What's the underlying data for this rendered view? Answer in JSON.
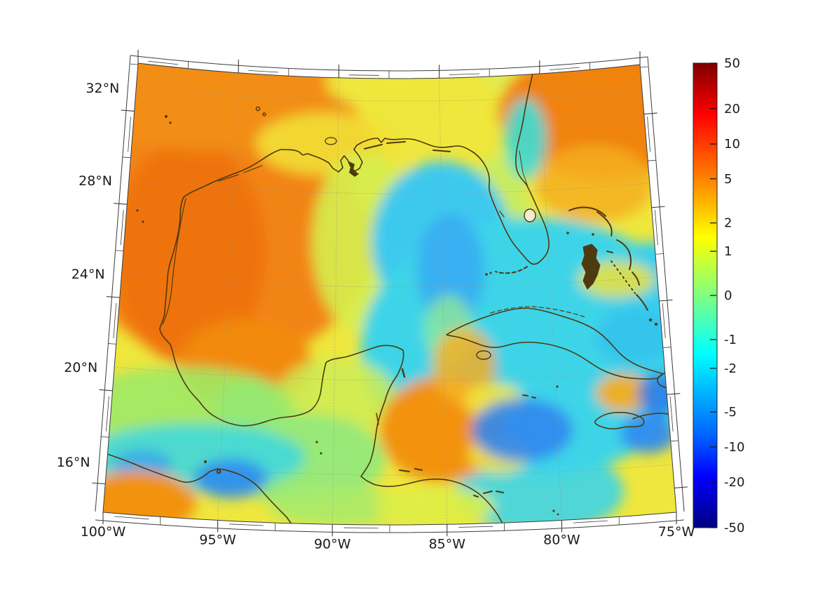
{
  "figure": {
    "background": "#ffffff",
    "description": "Filled-contour anomaly map of the Gulf of Mexico and northwest Caribbean with symlog jet colorbar"
  },
  "map": {
    "lat_tick_labels": [
      "32°N",
      "28°N",
      "24°N",
      "20°N",
      "16°N"
    ],
    "lon_tick_labels": [
      "100°W",
      "95°W",
      "90°W",
      "85°W",
      "80°W",
      "75°W"
    ],
    "coastline_color": "#4e3a10",
    "gridline_color": "#999388",
    "frame_color": "#3c3c3c"
  },
  "colorbar": {
    "tick_labels": [
      "50",
      "20",
      "10",
      "5",
      "2",
      "1",
      "0",
      "-1",
      "-2",
      "-5",
      "-10",
      "-20",
      "-50"
    ],
    "tick_pos": [
      0.0,
      0.098,
      0.174,
      0.249,
      0.344,
      0.405,
      0.5,
      0.595,
      0.657,
      0.751,
      0.826,
      0.902,
      1.0
    ],
    "colormap": "jet",
    "scale": "symlog"
  },
  "chart_data": {
    "type": "heatmap",
    "subtype": "geographic filled-contour field over map (pcolormesh-style), conic projection with curved parallels",
    "title": "",
    "xlabel": "",
    "ylabel": "",
    "extent": {
      "lon_west": -100,
      "lon_east": -75,
      "lat_south": 14,
      "lat_north": 33
    },
    "x_axis": {
      "ticks": [
        "100°W",
        "95°W",
        "90°W",
        "85°W",
        "80°W",
        "75°W"
      ],
      "minor_tick_step_deg": 2.5
    },
    "y_axis": {
      "ticks": [
        "32°N",
        "28°N",
        "24°N",
        "20°N",
        "16°N"
      ],
      "minor_tick_step_deg": 2
    },
    "grid": true,
    "legend_position": "none",
    "colorbar": {
      "position": "right",
      "scale": "symlog",
      "vmin": -50,
      "vmax": 50,
      "ticks": [
        50,
        20,
        10,
        5,
        2,
        1,
        0,
        -1,
        -2,
        -5,
        -10,
        -20,
        -50
      ],
      "colormap": "jet (dark red + at top through yellow/green at 0 to navy - at bottom)"
    },
    "values_by_region": [
      {
        "region": "western & central Gulf of Mexico (99-89W, 20-30N)",
        "approx_value": "+3 to +8"
      },
      {
        "region": "northern Gulf shelf along Louisiana/Florida panhandle",
        "approx_value": "+1 to +2"
      },
      {
        "region": "top-of-map yellow patch ~88-84W near 33N",
        "approx_value": "+1"
      },
      {
        "region": "Atlantic off Georgia / northeast corner",
        "approx_value": "+3 to +6"
      },
      {
        "region": "cyan streak hugging west Florida coast",
        "approx_value": "-1 to -2"
      },
      {
        "region": "eastern Gulf, Florida Straits, NW Caribbean",
        "approx_value": "-1 to -3"
      },
      {
        "region": "deep blue pockets S of Cuba, E of Jamaica, ~86W 25N",
        "approx_value": "-4 to -8"
      },
      {
        "region": "Bahamas banks yellow streaks",
        "approx_value": "0 to +1"
      },
      {
        "region": "orange blob north of Honduras ~86W 16-18N",
        "approx_value": "+2 to +5"
      },
      {
        "region": "orange spot in Windward Passage ~76W 19.5N",
        "approx_value": "+1 to +3"
      },
      {
        "region": "turquoise patch west of Yucatan ~93W 19N",
        "approx_value": "-1"
      },
      {
        "region": "green/cyan band along 15-17N west of 92W",
        "approx_value": "0 to -3"
      },
      {
        "region": "bottom-left corner ~99W 14.5N",
        "approx_value": "+2 to +4"
      },
      {
        "region": "yellow patches ~81W 17-19N",
        "approx_value": "+1"
      }
    ]
  }
}
